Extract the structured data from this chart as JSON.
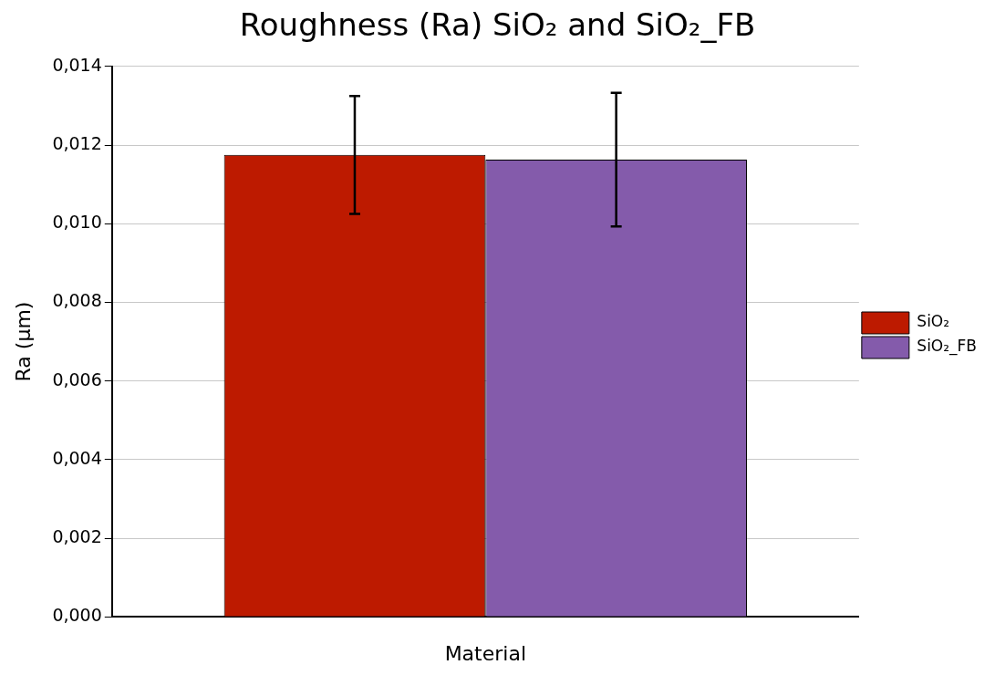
{
  "chart_data": {
    "type": "bar",
    "title": "Roughness (Ra) SiO₂ and SiO₂_FB",
    "xlabel": "Material",
    "ylabel": "Ra (µm)",
    "categories": [
      null
    ],
    "series": [
      {
        "name": "SiO₂",
        "color": "#bd1a00",
        "values": [
          0.01175
        ],
        "errors": [
          0.0015
        ]
      },
      {
        "name": "SiO₂_FB",
        "color": "#845bab",
        "values": [
          0.01163
        ],
        "errors": [
          0.0017
        ]
      }
    ],
    "ylim": [
      0,
      0.014
    ],
    "yticks": [
      {
        "value": 0,
        "label": "0,000"
      },
      {
        "value": 0.002,
        "label": "0,002"
      },
      {
        "value": 0.004,
        "label": "0,004"
      },
      {
        "value": 0.006,
        "label": "0,006"
      },
      {
        "value": 0.008,
        "label": "0,008"
      },
      {
        "value": 0.01,
        "label": "0,010"
      },
      {
        "value": 0.012,
        "label": "0,012"
      },
      {
        "value": 0.014,
        "label": "0,014"
      }
    ],
    "grid": "y",
    "legend": "right"
  }
}
